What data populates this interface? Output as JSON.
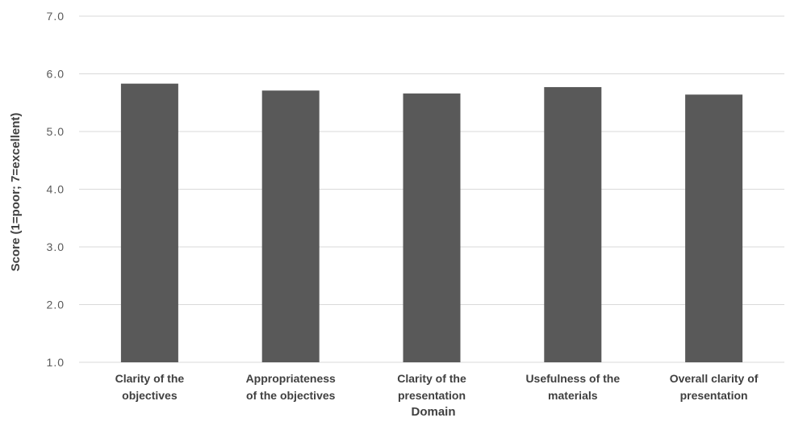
{
  "chart_data": {
    "type": "bar",
    "categories": [
      [
        "Clarity of the",
        "objectives"
      ],
      [
        "Appropriateness",
        "of the objectives"
      ],
      [
        "Clarity of the",
        "presentation"
      ],
      [
        "Usefulness of the",
        "materials"
      ],
      [
        "Overall clarity of",
        "presentation"
      ]
    ],
    "values": [
      5.83,
      5.71,
      5.66,
      5.77,
      5.64
    ],
    "xlabel": "Domain",
    "ylabel": "Score (1=poor; 7=excellent)",
    "ylim": [
      1.0,
      7.0
    ],
    "yticks": [
      "1.0",
      "2.0",
      "3.0",
      "4.0",
      "5.0",
      "6.0",
      "7.0"
    ],
    "grid": true,
    "bar_color": "#595959",
    "legend": "none"
  }
}
